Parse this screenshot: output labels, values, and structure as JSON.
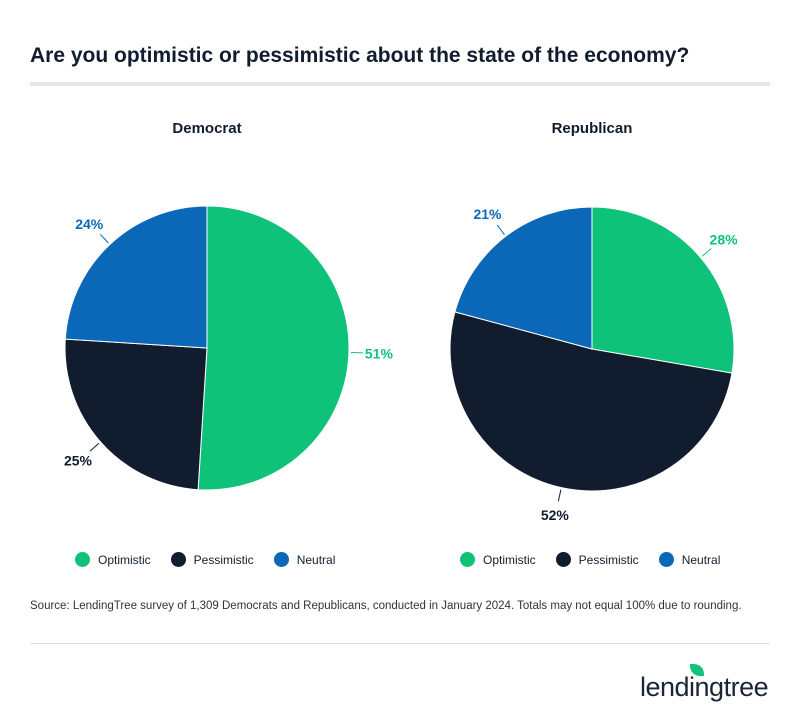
{
  "title": "Are you optimistic or pessimistic about the state of the economy?",
  "colors": {
    "Optimistic": "#0fc27a",
    "Pessimistic": "#111d2e",
    "Neutral": "#0b68b8"
  },
  "chart_data": [
    {
      "type": "pie",
      "title": "Democrat",
      "categories": [
        "Optimistic",
        "Pessimistic",
        "Neutral"
      ],
      "values": [
        51,
        25,
        24
      ],
      "labels": [
        "51%",
        "25%",
        "24%"
      ],
      "legend": "bottom"
    },
    {
      "type": "pie",
      "title": "Republican",
      "categories": [
        "Optimistic",
        "Pessimistic",
        "Neutral"
      ],
      "values": [
        28,
        52,
        21
      ],
      "labels": [
        "28%",
        "52%",
        "21%"
      ],
      "legend": "bottom"
    }
  ],
  "legend": [
    "Optimistic",
    "Pessimistic",
    "Neutral"
  ],
  "source": "Source: LendingTree survey of 1,309 Democrats and Republicans, conducted in January 2024. Totals may not equal 100% due to rounding.",
  "logo": "lendingtree"
}
